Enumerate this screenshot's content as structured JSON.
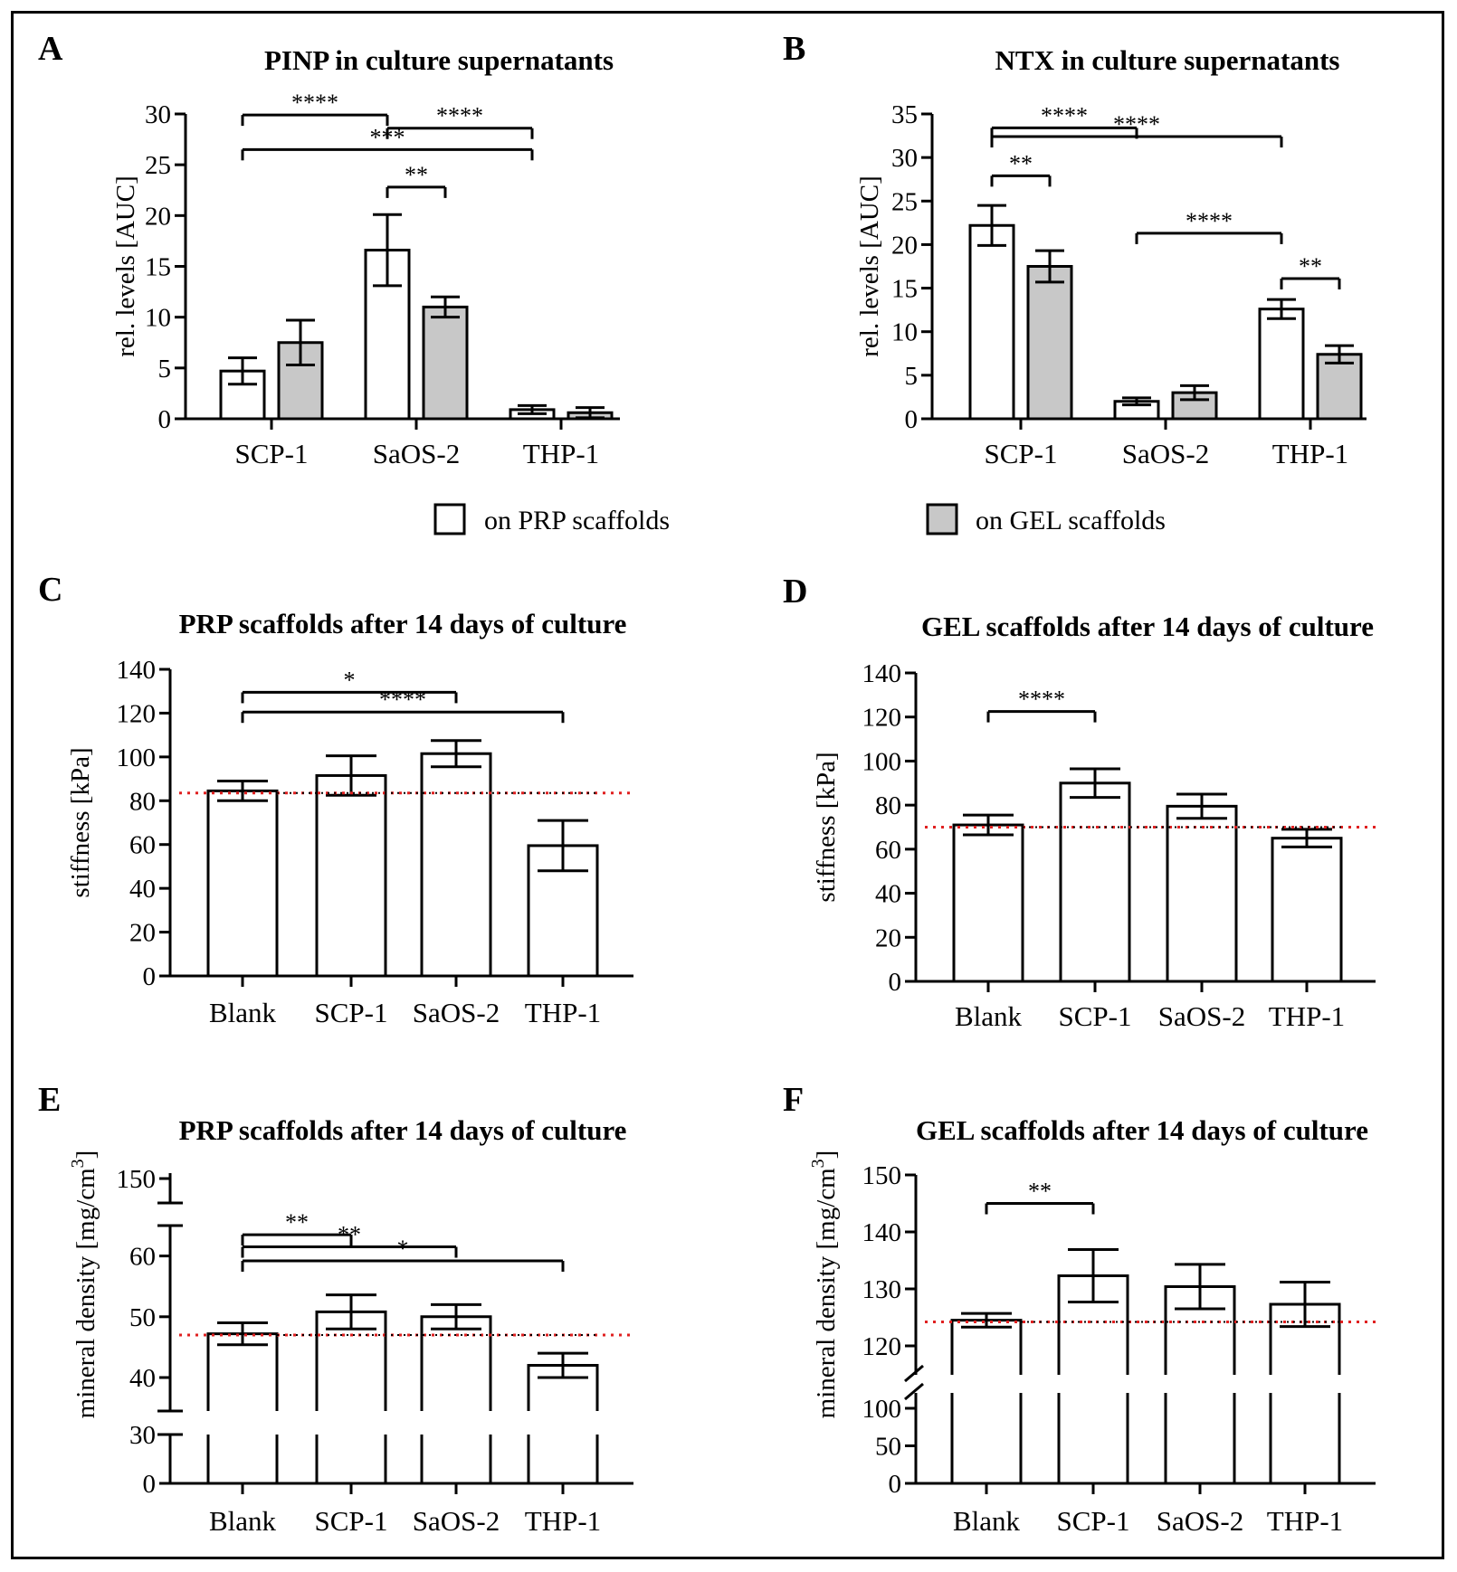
{
  "legend": {
    "prp": "on PRP scaffolds",
    "gel": "on GEL scaffolds"
  },
  "chart_data": [
    {
      "id": "A",
      "panel_label": "A",
      "type": "bar",
      "title": "PINP in culture supernatants",
      "ylabel": "rel. levels [AUC]",
      "ylim": [
        0,
        30
      ],
      "yticks": [
        0,
        5,
        10,
        15,
        20,
        25,
        30
      ],
      "categories": [
        "SCP-1",
        "SaOS-2",
        "THP-1"
      ],
      "series": [
        {
          "legend": "prp",
          "color": "#ffffff",
          "values": [
            4.7,
            16.6,
            0.9
          ],
          "errors": [
            1.3,
            3.5,
            0.4
          ]
        },
        {
          "legend": "gel",
          "color": "#c8c8c8",
          "values": [
            7.5,
            11.0,
            0.6
          ],
          "errors": [
            2.2,
            1.0,
            0.5
          ]
        }
      ],
      "brackets": [
        {
          "from": [
            0,
            0
          ],
          "to": [
            1,
            0
          ],
          "y": 29.9,
          "text": "****"
        },
        {
          "from": [
            1,
            0
          ],
          "to": [
            2,
            0
          ],
          "y": 28.6,
          "text": "****"
        },
        {
          "from": [
            0,
            0
          ],
          "to": [
            2,
            0
          ],
          "y": 26.5,
          "text": "***"
        },
        {
          "from": [
            1,
            0
          ],
          "to": [
            1,
            1
          ],
          "y": 22.8,
          "text": "**"
        }
      ]
    },
    {
      "id": "B",
      "panel_label": "B",
      "type": "bar",
      "title": "NTX in culture supernatants",
      "ylabel": "rel. levels [AUC]",
      "ylim": [
        0,
        35
      ],
      "yticks": [
        0,
        5,
        10,
        15,
        20,
        25,
        30,
        35
      ],
      "categories": [
        "SCP-1",
        "SaOS-2",
        "THP-1"
      ],
      "series": [
        {
          "legend": "prp",
          "color": "#ffffff",
          "values": [
            22.2,
            2.0,
            12.6
          ],
          "errors": [
            2.3,
            0.4,
            1.1
          ]
        },
        {
          "legend": "gel",
          "color": "#c8c8c8",
          "values": [
            17.5,
            3.0,
            7.4
          ],
          "errors": [
            1.8,
            0.8,
            1.0
          ]
        }
      ],
      "brackets": [
        {
          "from": [
            0,
            0
          ],
          "to": [
            1,
            0
          ],
          "y": 33.4,
          "text": "****"
        },
        {
          "from": [
            0,
            0
          ],
          "to": [
            2,
            0
          ],
          "y": 32.4,
          "text": "****"
        },
        {
          "from": [
            0,
            0
          ],
          "to": [
            0,
            1
          ],
          "y": 27.9,
          "text": "**"
        },
        {
          "from": [
            1,
            0
          ],
          "to": [
            2,
            0
          ],
          "y": 21.3,
          "text": "****"
        },
        {
          "from": [
            2,
            0
          ],
          "to": [
            2,
            1
          ],
          "y": 16.1,
          "text": "**"
        }
      ]
    },
    {
      "id": "C",
      "panel_label": "C",
      "type": "bar",
      "title": "PRP scaffolds after 14 days of culture",
      "ylabel": "stiffness [kPa]",
      "ylim": [
        0,
        140
      ],
      "yticks": [
        0,
        20,
        40,
        60,
        80,
        100,
        120,
        140
      ],
      "categories": [
        "Blank",
        "SCP-1",
        "SaOS-2",
        "THP-1"
      ],
      "series": [
        {
          "color": "#ffffff",
          "values": [
            84.5,
            91.5,
            101.5,
            59.5
          ],
          "errors": [
            4.5,
            9.0,
            6.0,
            11.5
          ]
        }
      ],
      "baseline": 83.5,
      "brackets": [
        {
          "from": [
            0,
            0
          ],
          "to": [
            2,
            0
          ],
          "y": 129.5,
          "text": "*"
        },
        {
          "from": [
            0,
            0
          ],
          "to": [
            3,
            0
          ],
          "y": 120.5,
          "text": "****"
        }
      ]
    },
    {
      "id": "D",
      "panel_label": "D",
      "type": "bar",
      "title": "GEL scaffolds after 14 days of culture",
      "ylabel": "stiffness [kPa]",
      "ylim": [
        0,
        140
      ],
      "yticks": [
        0,
        20,
        40,
        60,
        80,
        100,
        120,
        140
      ],
      "categories": [
        "Blank",
        "SCP-1",
        "SaOS-2",
        "THP-1"
      ],
      "series": [
        {
          "color": "#ffffff",
          "values": [
            71.0,
            90.0,
            79.5,
            65.0
          ],
          "errors": [
            4.5,
            6.5,
            5.5,
            4.0
          ]
        }
      ],
      "baseline": 70.0,
      "brackets": [
        {
          "from": [
            0,
            0
          ],
          "to": [
            1,
            0
          ],
          "y": 122.5,
          "text": "****"
        }
      ]
    },
    {
      "id": "E",
      "panel_label": "E",
      "type": "bar",
      "title": "PRP scaffolds after 14 days of culture",
      "ylabel": "mineral density [mg/cm",
      "ylabel_sup": "3",
      "ylabel_end": "]",
      "axis_break": true,
      "yticks": [
        0,
        30,
        40,
        50,
        60,
        150
      ],
      "categories": [
        "Blank",
        "SCP-1",
        "SaOS-2",
        "THP-1"
      ],
      "series": [
        {
          "color": "#ffffff",
          "values": [
            47.2,
            50.8,
            50.0,
            42.0
          ],
          "errors": [
            1.8,
            2.8,
            2.0,
            2.0
          ]
        }
      ],
      "baseline": 47.0,
      "brackets": [
        {
          "from": [
            0,
            0
          ],
          "to": [
            1,
            0
          ],
          "y": 63.5,
          "text": "**"
        },
        {
          "from": [
            0,
            0
          ],
          "to": [
            2,
            0
          ],
          "y": 61.5,
          "text": "**"
        },
        {
          "from": [
            0,
            0
          ],
          "to": [
            3,
            0
          ],
          "y": 59.2,
          "text": "*"
        }
      ]
    },
    {
      "id": "F",
      "panel_label": "F",
      "type": "bar",
      "title": "GEL scaffolds after 14 days of culture",
      "ylabel": "mineral density [mg/cm",
      "ylabel_sup": "3",
      "ylabel_end": "]",
      "axis_break": true,
      "yticks": [
        0,
        50,
        100,
        120,
        130,
        140,
        150
      ],
      "categories": [
        "Blank",
        "SCP-1",
        "SaOS-2",
        "THP-1"
      ],
      "series": [
        {
          "color": "#ffffff",
          "values": [
            124.5,
            132.3,
            130.4,
            127.3
          ],
          "errors": [
            1.2,
            4.6,
            3.9,
            3.9
          ]
        }
      ],
      "baseline": 124.2,
      "brackets": [
        {
          "from": [
            0,
            0
          ],
          "to": [
            1,
            0
          ],
          "y": 145.0,
          "text": "**"
        }
      ]
    }
  ]
}
